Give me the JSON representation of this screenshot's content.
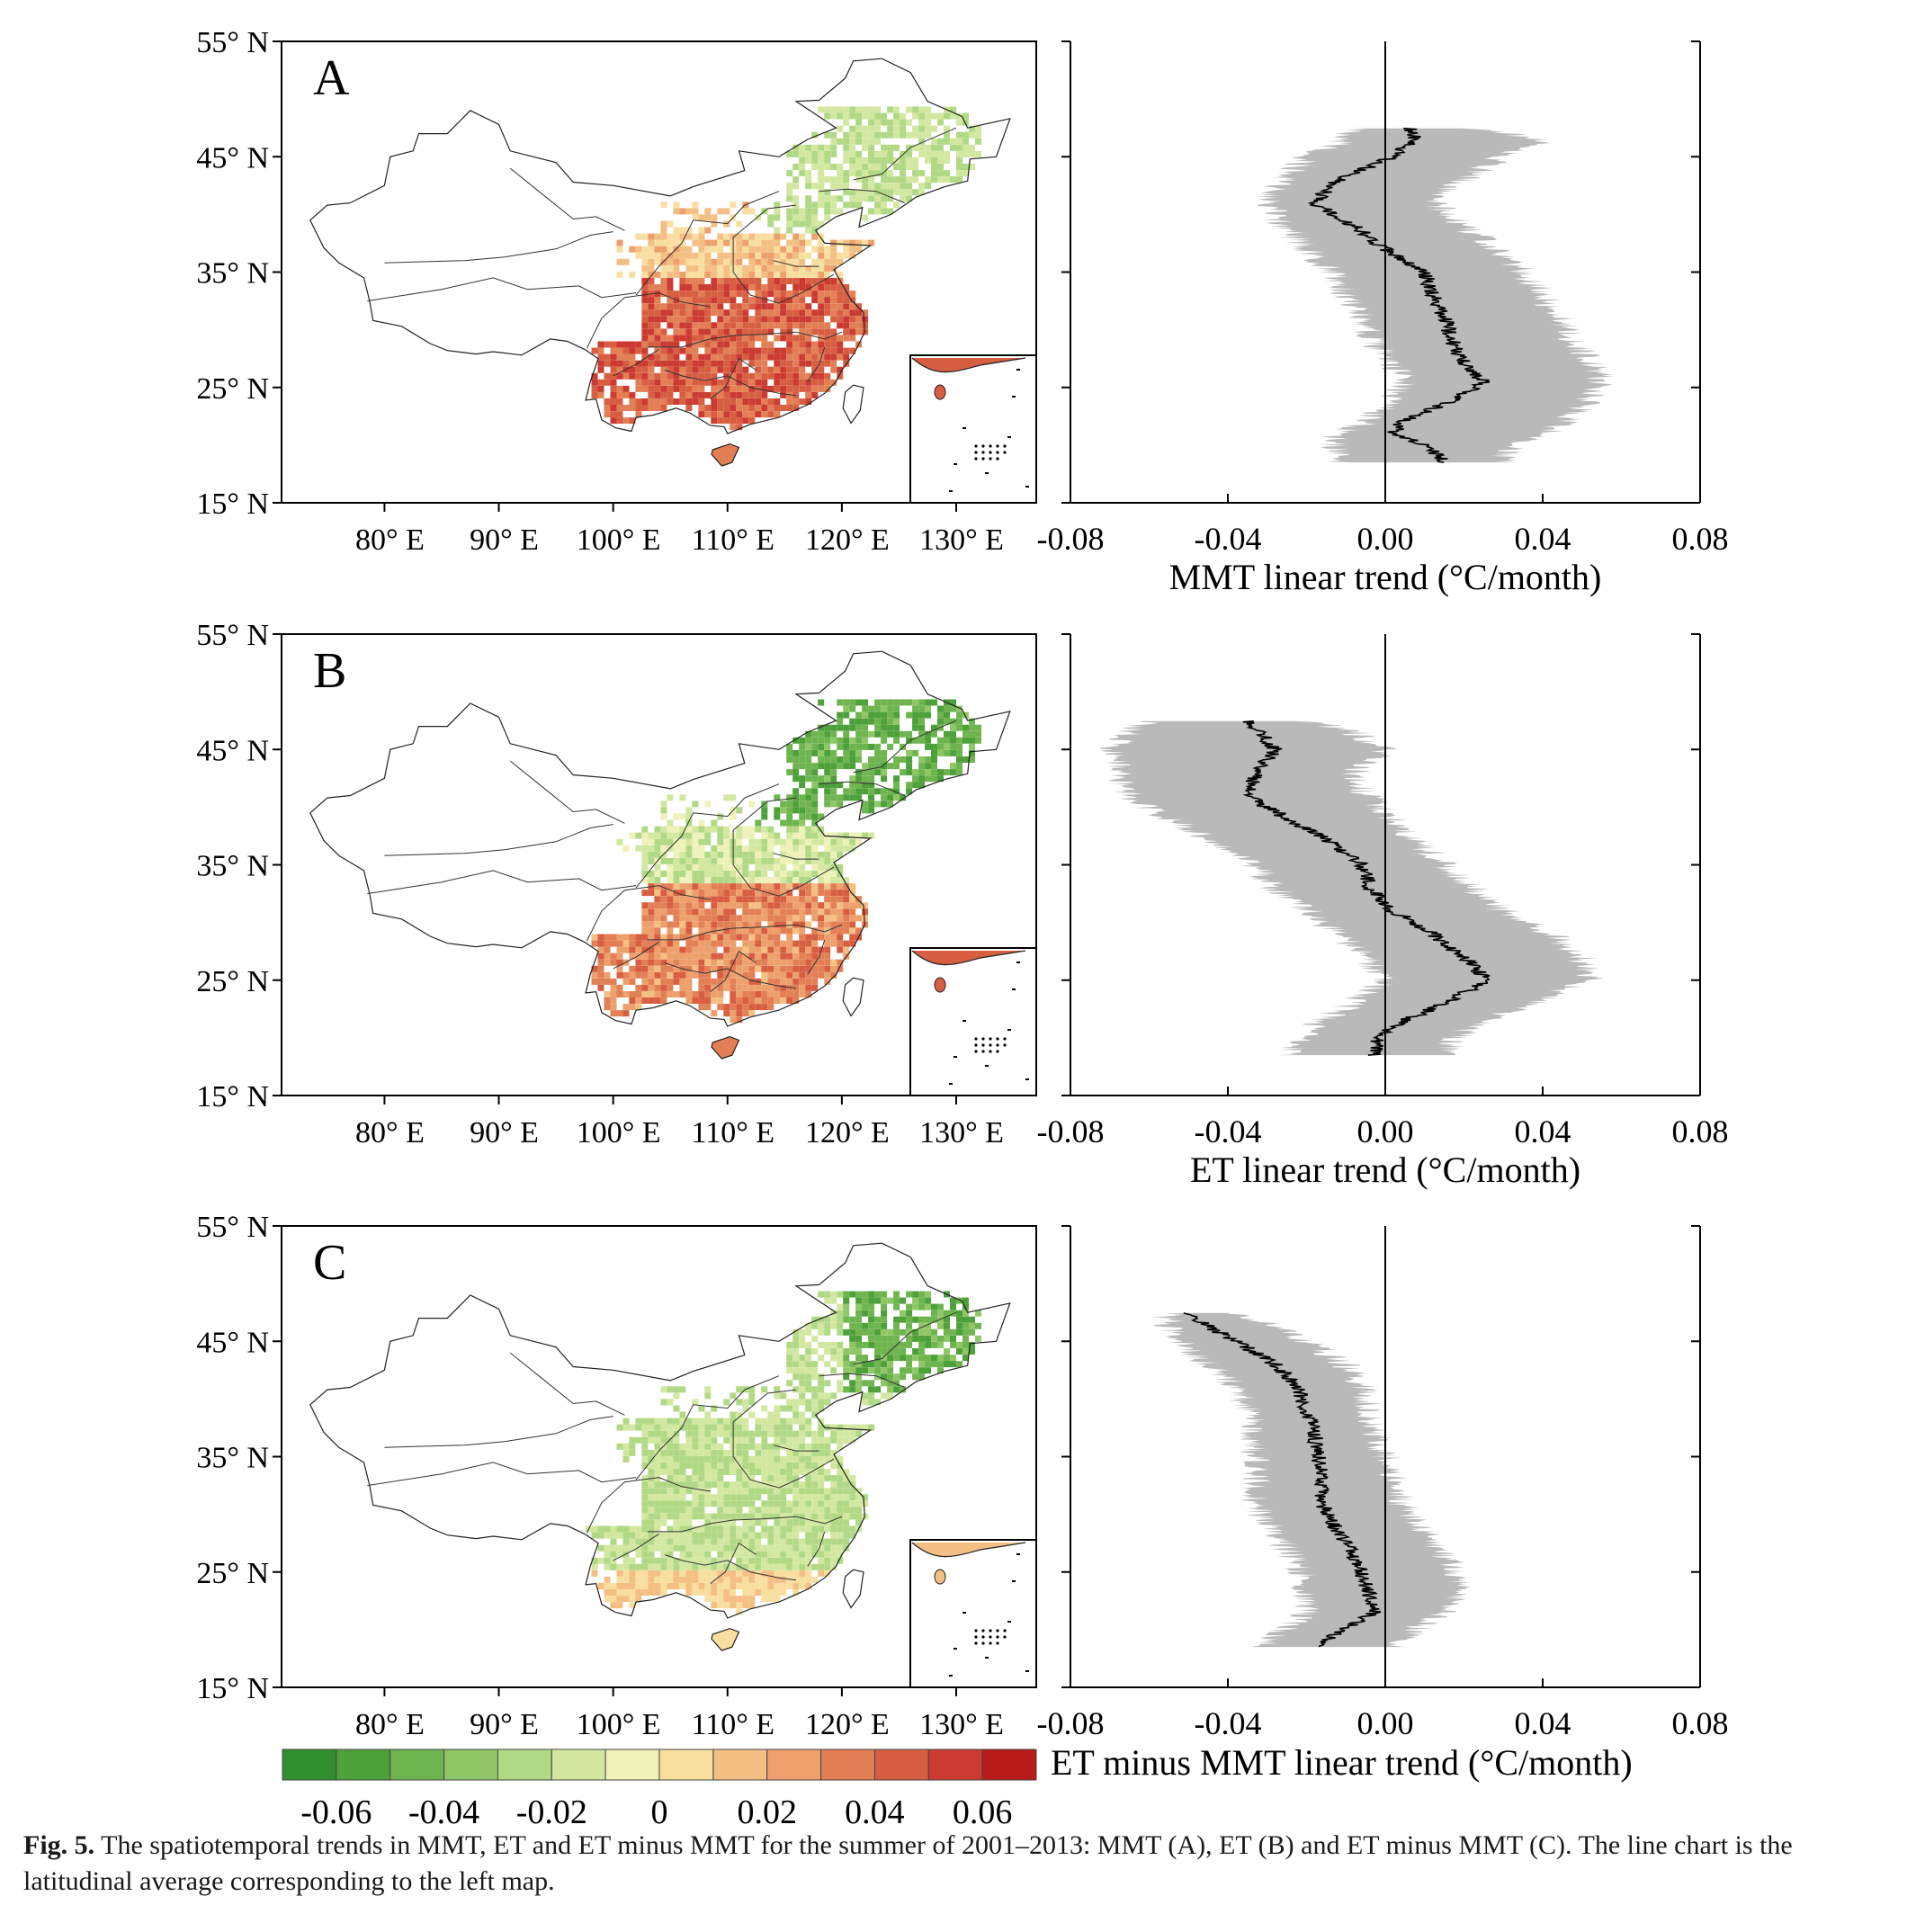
{
  "figure": {
    "caption_label": "Fig. 5.",
    "caption_text": "The spatiotemporal trends in MMT, ET and ET minus MMT for the summer of 2001–2013: MMT (A), ET (B) and ET minus MMT (C). The line chart is the latitudinal average corresponding to the left map."
  },
  "map_axes": {
    "x_ticks": [
      "80° E",
      "90° E",
      "100° E",
      "110° E",
      "120° E",
      "130° E"
    ],
    "y_ticks": [
      "15° N",
      "25° N",
      "35° N",
      "45° N",
      "55° N"
    ],
    "xlim": [
      71,
      137
    ],
    "ylim": [
      15,
      55
    ]
  },
  "colorbar": {
    "label": "ET minus MMT linear trend (°C/month)",
    "ticks": [
      "-0.06",
      "-0.04",
      "-0.02",
      "0",
      "0.02",
      "0.04",
      "0.06"
    ],
    "range": [
      -0.07,
      0.07
    ],
    "colors": [
      "#2f8f2f",
      "#4ea03a",
      "#6fb54f",
      "#8fc766",
      "#b1d985",
      "#d2e8a0",
      "#eef2b8",
      "#f8dfa0",
      "#f4bf83",
      "#eda06c",
      "#e37f55",
      "#d85e42",
      "#cb3b31",
      "#b81a1a"
    ]
  },
  "chart_data": [
    {
      "type": "line",
      "panel": "A",
      "xlabel": "MMT linear trend (°C/month)",
      "xlim": [
        -0.08,
        0.08
      ],
      "ylim": [
        15,
        55
      ],
      "x_ticks": [
        "-0.08",
        "-0.04",
        "0.00",
        "0.04",
        "0.08"
      ],
      "series": [
        {
          "lat": [
            18.5,
            20,
            21,
            22,
            24,
            25.5,
            27,
            29,
            31,
            33,
            35,
            37,
            39,
            41,
            43,
            45,
            46.5,
            47.5
          ],
          "mean": [
            0.015,
            0.01,
            0.002,
            0.004,
            0.018,
            0.025,
            0.02,
            0.017,
            0.015,
            0.012,
            0.01,
            0.0,
            -0.008,
            -0.018,
            -0.012,
            0.002,
            0.008,
            0.006
          ],
          "lower": [
            -0.012,
            -0.013,
            -0.012,
            -0.005,
            0.002,
            0.004,
            0.002,
            -0.003,
            -0.006,
            -0.01,
            -0.014,
            -0.02,
            -0.026,
            -0.03,
            -0.026,
            -0.02,
            -0.01,
            -0.008
          ],
          "upper": [
            0.03,
            0.032,
            0.04,
            0.046,
            0.052,
            0.055,
            0.053,
            0.048,
            0.044,
            0.04,
            0.035,
            0.028,
            0.02,
            0.012,
            0.02,
            0.03,
            0.04,
            0.02
          ]
        }
      ]
    },
    {
      "type": "line",
      "panel": "B",
      "xlabel": "ET linear trend (°C/month)",
      "xlim": [
        -0.08,
        0.08
      ],
      "ylim": [
        15,
        55
      ],
      "x_ticks": [
        "-0.08",
        "-0.04",
        "0.00",
        "0.04",
        "0.08"
      ],
      "series": [
        {
          "lat": [
            18.5,
            20,
            21.5,
            23,
            25,
            27,
            29,
            31,
            33,
            35,
            37,
            39,
            41,
            43,
            45,
            46.5,
            47.5
          ],
          "mean": [
            -0.003,
            -0.002,
            0.005,
            0.015,
            0.026,
            0.02,
            0.012,
            0.002,
            -0.004,
            -0.006,
            -0.014,
            -0.025,
            -0.035,
            -0.033,
            -0.028,
            -0.032,
            -0.035
          ],
          "lower": [
            -0.024,
            -0.022,
            -0.016,
            -0.008,
            0.0,
            -0.005,
            -0.012,
            -0.02,
            -0.028,
            -0.034,
            -0.044,
            -0.055,
            -0.065,
            -0.068,
            -0.07,
            -0.065,
            -0.06
          ],
          "upper": [
            0.015,
            0.018,
            0.025,
            0.038,
            0.052,
            0.05,
            0.042,
            0.03,
            0.022,
            0.015,
            0.008,
            0.002,
            -0.005,
            -0.008,
            0.0,
            -0.008,
            -0.02
          ]
        }
      ]
    },
    {
      "type": "line",
      "panel": "C",
      "xlabel": "",
      "xlim": [
        -0.08,
        0.08
      ],
      "ylim": [
        15,
        55
      ],
      "x_ticks": [
        "-0.08",
        "-0.04",
        "0.00",
        "0.04",
        "0.08"
      ],
      "series": [
        {
          "lat": [
            18.5,
            20,
            21.5,
            23,
            25,
            27,
            29,
            31,
            33,
            35,
            37,
            39,
            41,
            43,
            45,
            46.5,
            47.5
          ],
          "mean": [
            -0.018,
            -0.01,
            -0.003,
            -0.004,
            -0.006,
            -0.009,
            -0.013,
            -0.016,
            -0.016,
            -0.017,
            -0.018,
            -0.02,
            -0.022,
            -0.028,
            -0.038,
            -0.046,
            -0.05
          ],
          "lower": [
            -0.032,
            -0.026,
            -0.02,
            -0.02,
            -0.022,
            -0.025,
            -0.03,
            -0.033,
            -0.033,
            -0.033,
            -0.034,
            -0.035,
            -0.038,
            -0.045,
            -0.052,
            -0.055,
            -0.055
          ],
          "upper": [
            0.003,
            0.008,
            0.014,
            0.018,
            0.018,
            0.014,
            0.008,
            0.004,
            0.002,
            0.0,
            -0.002,
            -0.004,
            -0.006,
            -0.01,
            -0.02,
            -0.03,
            -0.04
          ]
        }
      ]
    }
  ],
  "panels": [
    {
      "letter": "A"
    },
    {
      "letter": "B"
    },
    {
      "letter": "C"
    }
  ]
}
